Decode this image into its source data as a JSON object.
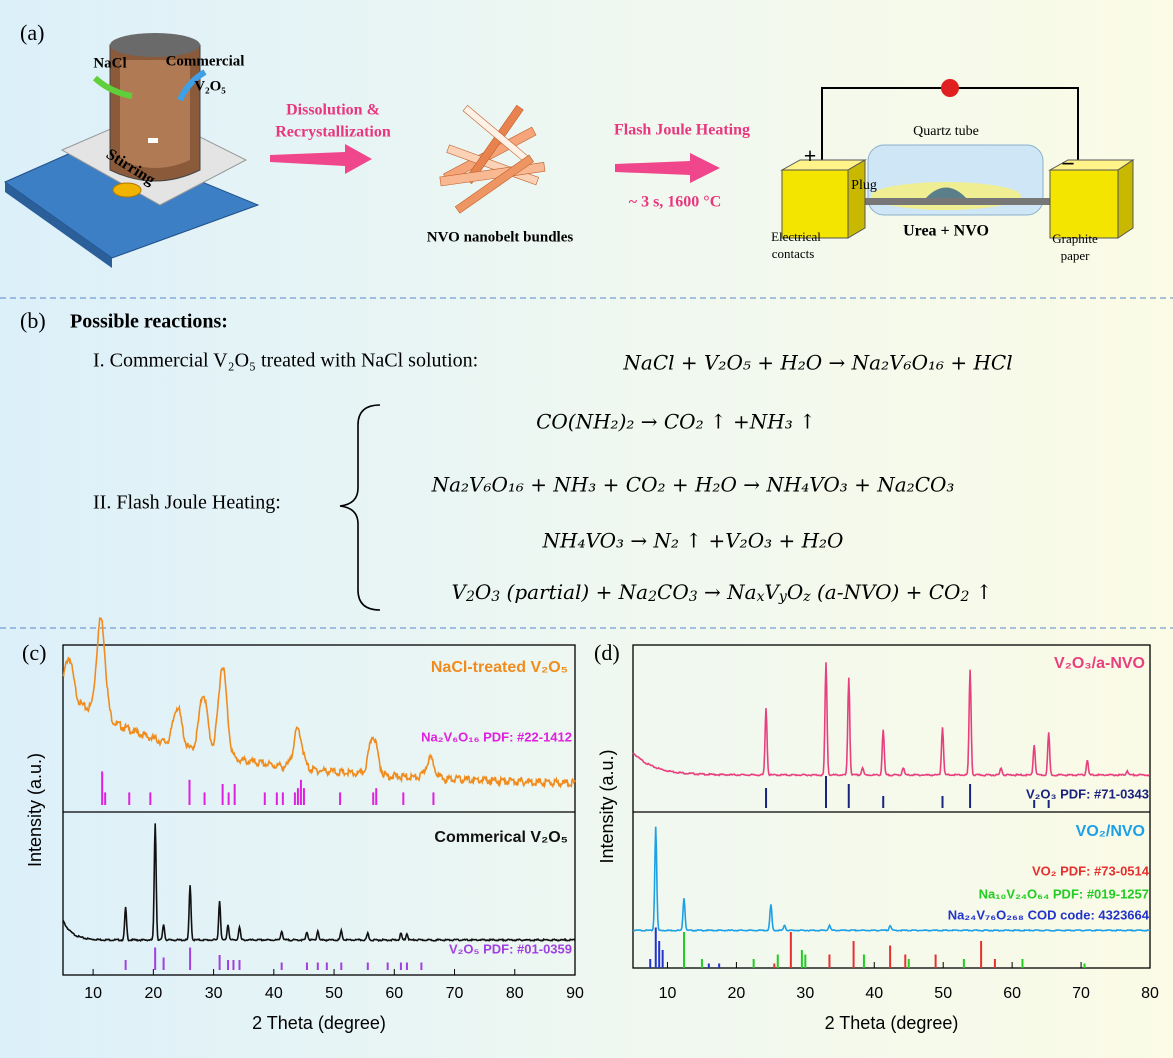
{
  "panel_a": {
    "label": "(a)",
    "nacl": "NaCl",
    "commercial": "Commercial",
    "v2o5": "V₂O₅",
    "stirring": "Stirring",
    "step1": [
      "Dissolution &",
      "Recrystallization"
    ],
    "bundles": "NVO nanobelt bundles",
    "step2": "Flash Joule Heating",
    "conditions": "~ 3 s, 1600 °C",
    "quartz": "Quartz tube",
    "plug": "Plug",
    "plus": "+",
    "minus": "−",
    "urea": "Urea + NVO",
    "contacts": [
      "Electrical",
      "contacts"
    ],
    "graphite": [
      "Graphite",
      "paper"
    ]
  },
  "panel_b": {
    "label": "(b)",
    "heading": "Possible reactions:",
    "r1_label": "I. Commercial V₂O₅ treated with NaCl solution:",
    "r1": "NaCl + V₂O₅ + H₂O → Na₂V₆O₁₆ + HCl",
    "r2_label": "II. Flash Joule Heating:",
    "r2": [
      "CO(NH₂)₂ → CO₂ ↑ +NH₃ ↑",
      "Na₂V₆O₁₆ + NH₃ + CO₂ + H₂O → NH₄VO₃ + Na₂CO₃",
      "NH₄VO₃ → N₂ ↑ +V₂O₃ + H₂O"
    ],
    "r2_last": [
      "V",
      "2",
      "O",
      "3",
      " (partial) + Na",
      "2",
      "CO",
      "3",
      " → Na",
      "x",
      "V",
      "y",
      "O",
      "z",
      " (a-NVO) + CO",
      "2",
      " ↑"
    ]
  },
  "chart_data": [
    {
      "type": "xrd",
      "label": "(c)",
      "xlabel": "2 Theta (degree)",
      "ylabel": "Intensity (a.u.)",
      "xlim": [
        5,
        90
      ],
      "xticks": [
        10,
        20,
        30,
        40,
        50,
        60,
        70,
        80,
        90
      ],
      "panels": [
        {
          "pattern": {
            "name": "NaCl-treated V₂O₅",
            "color": "#f08c1e",
            "x": [
              6,
              11.3,
              24,
              28.3,
              31.5,
              44,
              56.5,
              66
            ],
            "values": [
              0.3,
              0.75,
              0.3,
              0.45,
              0.7,
              0.3,
              0.3,
              0.15
            ]
          },
          "references": [
            {
              "name": "Na₂V₆O₁₆  PDF: #22-1412",
              "color": "#e020e0",
              "x": [
                11.5,
                12,
                16,
                19.5,
                26,
                28.5,
                31.5,
                32.5,
                33.5,
                38.5,
                40.5,
                41.5,
                43.5,
                44,
                44.5,
                45,
                51,
                56.5,
                57,
                61.5,
                66.5
              ],
              "values": [
                0.8,
                0.3,
                0.3,
                0.3,
                0.6,
                0.3,
                0.5,
                0.3,
                0.5,
                0.3,
                0.3,
                0.3,
                0.3,
                0.4,
                0.6,
                0.4,
                0.3,
                0.3,
                0.4,
                0.3,
                0.3
              ]
            }
          ]
        },
        {
          "pattern": {
            "name": "Commerical V₂O₅",
            "color": "#111111",
            "x": [
              15.4,
              20.3,
              21.7,
              26.1,
              31,
              32.4,
              34.3,
              41.3,
              45.5,
              47.3,
              51.2,
              55.6,
              61.1,
              62.1
            ],
            "values": [
              0.25,
              0.9,
              0.12,
              0.42,
              0.3,
              0.12,
              0.1,
              0.07,
              0.06,
              0.07,
              0.07,
              0.05,
              0.05,
              0.05
            ]
          },
          "references": [
            {
              "name": "V₂O₅ PDF: #01-0359",
              "color": "#a040e0",
              "x": [
                15.4,
                20.3,
                21.7,
                26.1,
                31,
                32.4,
                33.3,
                34.3,
                41.3,
                45.5,
                47.3,
                48.8,
                51.2,
                55.6,
                58.9,
                61.1,
                62.1,
                64.5
              ],
              "values": [
                0.4,
                0.9,
                0.5,
                0.9,
                0.6,
                0.4,
                0.4,
                0.4,
                0.3,
                0.3,
                0.3,
                0.3,
                0.3,
                0.3,
                0.3,
                0.3,
                0.3,
                0.3
              ]
            }
          ]
        }
      ]
    },
    {
      "type": "xrd",
      "label": "(d)",
      "xlabel": "2 Theta (degree)",
      "ylabel": "Intensity (a.u.)",
      "xlim": [
        5,
        80
      ],
      "xticks": [
        10,
        20,
        30,
        40,
        50,
        60,
        70,
        80
      ],
      "panels": [
        {
          "pattern": {
            "name": "V₂O₃/a-NVO",
            "color": "#e8407f",
            "x": [
              24.3,
              33,
              36.3,
              38.3,
              41.3,
              44.2,
              49.9,
              53.9,
              58.4,
              63.2,
              65.3,
              70.9,
              76.7
            ],
            "values": [
              0.45,
              0.75,
              0.65,
              0.05,
              0.3,
              0.05,
              0.32,
              0.7,
              0.05,
              0.2,
              0.28,
              0.1,
              0.03
            ]
          },
          "references": [
            {
              "name": "V₂O₃ PDF: #71-0343",
              "color": "#1a237e",
              "x": [
                24.3,
                33,
                36.3,
                41.3,
                49.9,
                53.9,
                63.2,
                65.3
              ],
              "values": [
                0.5,
                0.8,
                0.6,
                0.3,
                0.3,
                0.6,
                0.2,
                0.2
              ]
            }
          ]
        },
        {
          "pattern": {
            "name": "VO₂/NVO",
            "color": "#1ea0e6",
            "x": [
              8.3,
              12.4,
              25,
              27,
              33.5,
              42.3
            ],
            "values": [
              0.8,
              0.25,
              0.2,
              0.04,
              0.04,
              0.04
            ]
          },
          "references": [
            {
              "name": "VO₂ PDF: #73-0514",
              "color": "#e53030",
              "x": [
                25.5,
                27.9,
                33.5,
                37,
                42.3,
                44.5,
                48.9,
                55.5,
                57.5
              ],
              "values": [
                0.1,
                0.8,
                0.3,
                0.6,
                0.5,
                0.3,
                0.3,
                0.6,
                0.2
              ]
            },
            {
              "name": "Na₁₀V₂₄O₆₄  PDF: #019-1257",
              "color": "#22cc22",
              "x": [
                12.4,
                15,
                22.5,
                26,
                29.5,
                30,
                38.5,
                45,
                53,
                61.5,
                70.5
              ],
              "values": [
                0.8,
                0.2,
                0.2,
                0.3,
                0.4,
                0.3,
                0.3,
                0.2,
                0.2,
                0.2,
                0.1
              ]
            },
            {
              "name": "Na₂₄V₇₆O₂₆₈ COD code: 4323664",
              "color": "#2233cc",
              "x": [
                7.5,
                8.3,
                8.8,
                9.3,
                16,
                17.5
              ],
              "values": [
                0.2,
                0.9,
                0.6,
                0.4,
                0.1,
                0.1
              ]
            }
          ]
        }
      ]
    }
  ]
}
